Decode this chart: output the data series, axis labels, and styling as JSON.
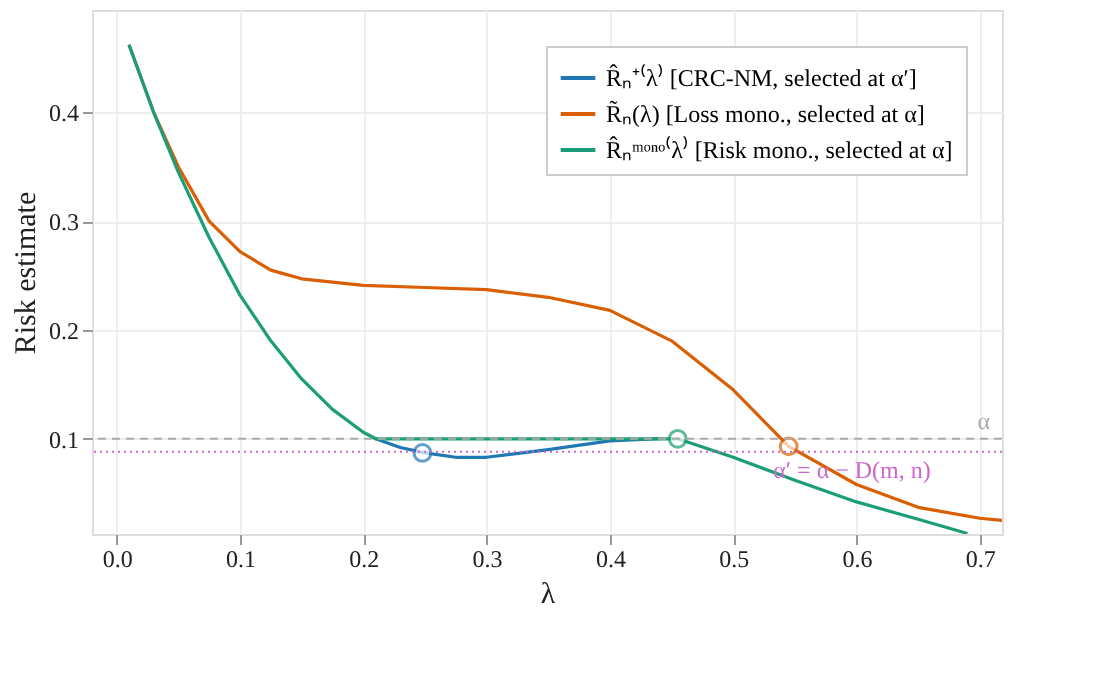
{
  "chart_data": {
    "type": "line",
    "xlabel": "λ",
    "ylabel": "Risk estimate",
    "xlim": [
      -0.02,
      0.718
    ],
    "ylim": [
      0.0125,
      0.494
    ],
    "xticks": [
      {
        "value": 0,
        "label": "0.0"
      },
      0.1,
      0.2,
      0.3,
      0.4,
      0.5,
      0.6,
      0.7
    ],
    "yticks": [
      0.1,
      0.2,
      0.3,
      0.4
    ],
    "grid": true,
    "legend": "top right",
    "line_style": "solid",
    "series": [
      {
        "name": "R̂ₙ⁺⁽λ⁾ [CRC-NM, selected at α′]",
        "color": "#1f78b4",
        "x": [
          0.21,
          0.23,
          0.25,
          0.275,
          0.3,
          0.35,
          0.4,
          0.44
        ],
        "values": [
          0.1,
          0.092,
          0.087,
          0.083,
          0.083,
          0.09,
          0.098,
          0.1
        ]
      },
      {
        "name": "R̃ₙ(λ) [Loss mono., selected at α]",
        "color": "#d95f02",
        "x": [
          0.01,
          0.03,
          0.05,
          0.075,
          0.1,
          0.125,
          0.15,
          0.2,
          0.25,
          0.3,
          0.35,
          0.4,
          0.45,
          0.5,
          0.545,
          0.6,
          0.65,
          0.7,
          0.718
        ],
        "values": [
          0.462,
          0.4,
          0.35,
          0.3,
          0.272,
          0.255,
          0.247,
          0.241,
          0.239,
          0.237,
          0.23,
          0.218,
          0.19,
          0.145,
          0.093,
          0.058,
          0.037,
          0.027,
          0.025
        ]
      },
      {
        "name": "R̂ₙᵐᵒⁿᵒ⁽λ⁾ [Risk mono., selected at α]",
        "color": "#1b9e77",
        "x": [
          0.01,
          0.03,
          0.05,
          0.075,
          0.1,
          0.125,
          0.15,
          0.175,
          0.2,
          0.21,
          0.455,
          0.5,
          0.55,
          0.6,
          0.65,
          0.69
        ],
        "values": [
          0.462,
          0.4,
          0.345,
          0.285,
          0.232,
          0.19,
          0.155,
          0.127,
          0.106,
          0.1,
          0.1,
          0.083,
          0.062,
          0.042,
          0.026,
          0.013
        ]
      },
      {
        "color": "#1f78b4",
        "type": "scatter",
        "marker": "circle",
        "x": [
          0.248
        ],
        "values": [
          0.087
        ]
      },
      {
        "color": "#1b9e77",
        "type": "scatter",
        "marker": "circle",
        "x": [
          0.455
        ],
        "values": [
          0.1
        ]
      },
      {
        "color": "#d95f02",
        "type": "scatter",
        "marker": "circle",
        "x": [
          0.545
        ],
        "values": [
          0.093
        ]
      }
    ],
    "ref_lines": [
      {
        "axis": "y",
        "value": 0.1,
        "label": "α",
        "color": "#aaaaaa",
        "line_style": "dashed"
      },
      {
        "axis": "y",
        "value": 0.088,
        "label": "α′ = α − D(m, n)",
        "color": "#cc66cc",
        "line_style": "dotted"
      }
    ]
  }
}
